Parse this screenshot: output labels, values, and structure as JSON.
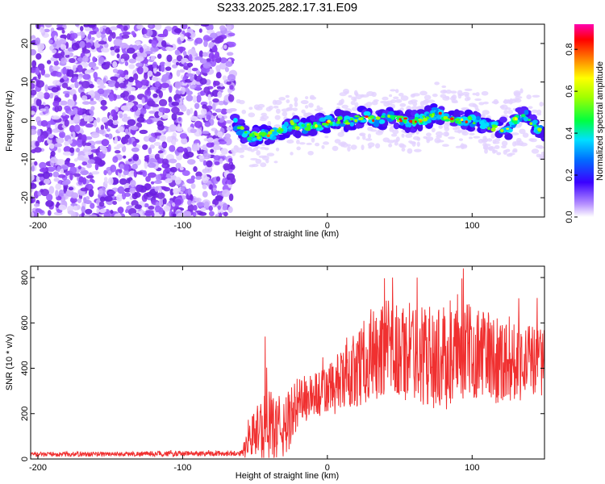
{
  "title": "S233.2025.282.17.31.E09",
  "chart_data": [
    {
      "type": "heatmap",
      "xlabel": "Height of straight line (km)",
      "ylabel": "Frequency (Hz)",
      "xlim": [
        -205,
        150
      ],
      "ylim": [
        -25,
        25
      ],
      "xticks": [
        -200,
        -100,
        0,
        100
      ],
      "yticks": [
        -20,
        -10,
        0,
        10,
        20
      ],
      "noise_region_x": [
        -205,
        -65
      ],
      "ridge_x": [
        -65,
        -55,
        -45,
        -35,
        -25,
        -15,
        -5,
        5,
        15,
        25,
        35,
        45,
        55,
        65,
        75,
        85,
        95,
        105,
        115,
        125,
        135,
        145,
        150
      ],
      "ridge_freq_hz": [
        -0.5,
        -4,
        -4,
        -3,
        -1,
        -2,
        -1,
        0,
        0,
        1,
        0,
        1,
        0,
        0,
        2,
        0,
        0,
        0,
        -2,
        -2,
        2,
        -2,
        -3
      ],
      "colorbar": {
        "label": "Normalized spectral amplitude",
        "ticks": [
          "0.0",
          "0.2",
          "0.4",
          "0.6",
          "0.8"
        ],
        "range": [
          0,
          0.92
        ]
      }
    },
    {
      "type": "line",
      "xlabel": "Height of straight line (km)",
      "ylabel": "SNR (10 * v/v)",
      "xlim": [
        -205,
        150
      ],
      "ylim": [
        0,
        850
      ],
      "xticks": [
        -200,
        -100,
        0,
        100
      ],
      "yticks": [
        0,
        200,
        400,
        600,
        800
      ],
      "series_color": "#f03030",
      "x_knots": [
        -205,
        -60,
        -55,
        -50,
        -40,
        -30,
        -20,
        -10,
        0,
        10,
        20,
        30,
        40,
        60,
        80,
        100,
        120,
        150
      ],
      "mean_snr": [
        20,
        25,
        60,
        120,
        150,
        130,
        250,
        280,
        300,
        340,
        400,
        450,
        470,
        470,
        440,
        480,
        440,
        430
      ],
      "spread_snr": [
        10,
        12,
        60,
        120,
        150,
        140,
        120,
        100,
        120,
        140,
        170,
        200,
        230,
        220,
        230,
        210,
        200,
        150
      ],
      "peak_snr": [
        840,
        800,
        800,
        710,
        660,
        640,
        540
      ],
      "peak_x": [
        94,
        45,
        62,
        145,
        30,
        108,
        -43
      ]
    }
  ]
}
